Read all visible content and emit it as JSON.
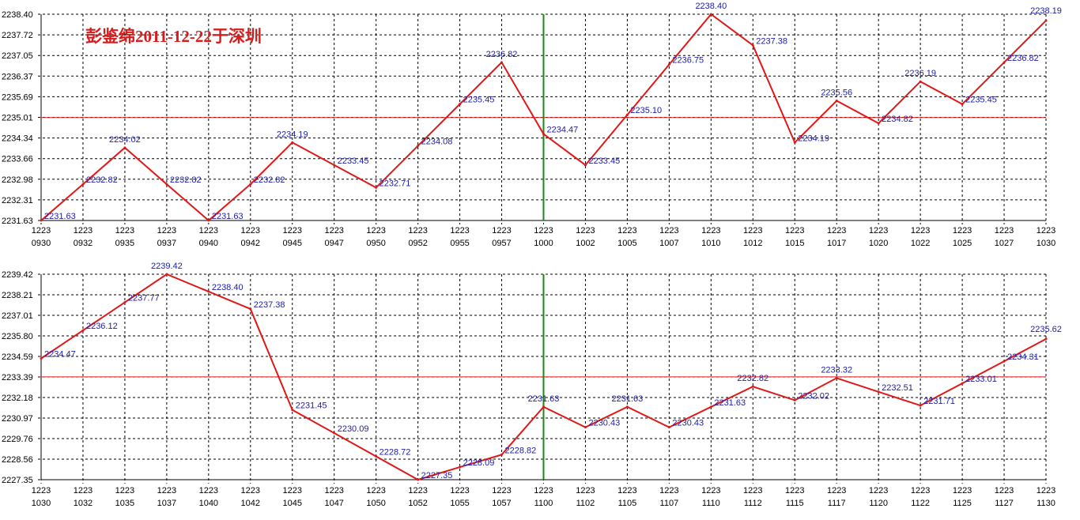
{
  "chart_data": [
    {
      "type": "line",
      "title": "彭鉴绵2011-12-22于深圳",
      "series_color": "#e01818",
      "label_color": "#1c1ca8",
      "reference_line_color": "#e01818",
      "vertical_marker_color": "#1a8a1a",
      "grid": true,
      "grid_style": "dashed",
      "ylim": [
        2231.63,
        2238.4
      ],
      "y_ticks": [
        "2238.40",
        "2237.72",
        "2237.05",
        "2236.37",
        "2235.69",
        "2235.01",
        "2234.34",
        "2233.66",
        "2232.98",
        "2232.31",
        "2231.63"
      ],
      "reference_line": 2235.01,
      "vertical_marker_at": "1223 1000",
      "x_ticks": [
        {
          "top": "1223",
          "bottom": "0930"
        },
        {
          "top": "1223",
          "bottom": "0932"
        },
        {
          "top": "1223",
          "bottom": "0935"
        },
        {
          "top": "1223",
          "bottom": "0937"
        },
        {
          "top": "1223",
          "bottom": "0940"
        },
        {
          "top": "1223",
          "bottom": "0942"
        },
        {
          "top": "1223",
          "bottom": "0945"
        },
        {
          "top": "1223",
          "bottom": "0947"
        },
        {
          "top": "1223",
          "bottom": "0950"
        },
        {
          "top": "1223",
          "bottom": "0952"
        },
        {
          "top": "1223",
          "bottom": "0955"
        },
        {
          "top": "1223",
          "bottom": "0957"
        },
        {
          "top": "1223",
          "bottom": "1000"
        },
        {
          "top": "1223",
          "bottom": "1002"
        },
        {
          "top": "1223",
          "bottom": "1005"
        },
        {
          "top": "1223",
          "bottom": "1007"
        },
        {
          "top": "1223",
          "bottom": "1010"
        },
        {
          "top": "1223",
          "bottom": "1012"
        },
        {
          "top": "1223",
          "bottom": "1015"
        },
        {
          "top": "1223",
          "bottom": "1017"
        },
        {
          "top": "1223",
          "bottom": "1020"
        },
        {
          "top": "1223",
          "bottom": "1022"
        },
        {
          "top": "1223",
          "bottom": "1025"
        },
        {
          "top": "1223",
          "bottom": "1027"
        },
        {
          "top": "1223",
          "bottom": "1030"
        }
      ],
      "values": [
        2231.63,
        2232.82,
        2234.02,
        2232.82,
        2231.63,
        2232.82,
        2234.19,
        2233.45,
        2232.71,
        2234.08,
        2235.45,
        2236.82,
        2234.47,
        2233.45,
        2235.1,
        2236.75,
        2238.4,
        2237.38,
        2234.19,
        2235.56,
        2234.82,
        2236.19,
        2235.45,
        2236.82,
        2238.19
      ],
      "labels": [
        "2231.63",
        "2232.82",
        "2234.02",
        "2232.82",
        "2231.63",
        "2232.82",
        "2234.19",
        "2233.45",
        "2232.71",
        "2234.08",
        "2235.45",
        "2236.82",
        "2234.47",
        "2233.45",
        "2235.10",
        "2236.75",
        "2238.40",
        "2237.38",
        "2234.19",
        "2235.56",
        "2234.82",
        "2236.19",
        "2235.45",
        "2236.82",
        "2238.19"
      ]
    },
    {
      "type": "line",
      "title": "",
      "series_color": "#e01818",
      "label_color": "#1c1ca8",
      "reference_line_color": "#e01818",
      "vertical_marker_color": "#1a8a1a",
      "grid": true,
      "grid_style": "dashed",
      "ylim": [
        2227.35,
        2239.42
      ],
      "y_ticks": [
        "2239.42",
        "2238.21",
        "2237.01",
        "2235.80",
        "2234.59",
        "2233.39",
        "2232.18",
        "2230.97",
        "2229.76",
        "2228.56",
        "2227.35"
      ],
      "reference_line": 2233.39,
      "vertical_marker_at": "1223 1100",
      "x_ticks": [
        {
          "top": "1223",
          "bottom": "1030"
        },
        {
          "top": "1223",
          "bottom": "1032"
        },
        {
          "top": "1223",
          "bottom": "1035"
        },
        {
          "top": "1223",
          "bottom": "1037"
        },
        {
          "top": "1223",
          "bottom": "1040"
        },
        {
          "top": "1223",
          "bottom": "1042"
        },
        {
          "top": "1223",
          "bottom": "1045"
        },
        {
          "top": "1223",
          "bottom": "1047"
        },
        {
          "top": "1223",
          "bottom": "1050"
        },
        {
          "top": "1223",
          "bottom": "1052"
        },
        {
          "top": "1223",
          "bottom": "1055"
        },
        {
          "top": "1223",
          "bottom": "1057"
        },
        {
          "top": "1223",
          "bottom": "1100"
        },
        {
          "top": "1223",
          "bottom": "1102"
        },
        {
          "top": "1223",
          "bottom": "1105"
        },
        {
          "top": "1223",
          "bottom": "1107"
        },
        {
          "top": "1223",
          "bottom": "1110"
        },
        {
          "top": "1223",
          "bottom": "1112"
        },
        {
          "top": "1223",
          "bottom": "1115"
        },
        {
          "top": "1223",
          "bottom": "1117"
        },
        {
          "top": "1223",
          "bottom": "1120"
        },
        {
          "top": "1223",
          "bottom": "1122"
        },
        {
          "top": "1223",
          "bottom": "1125"
        },
        {
          "top": "1223",
          "bottom": "1127"
        },
        {
          "top": "1223",
          "bottom": "1130"
        }
      ],
      "values": [
        2234.47,
        2236.12,
        2237.77,
        2239.42,
        2238.4,
        2237.38,
        2231.45,
        2230.09,
        2228.72,
        2227.35,
        2228.09,
        2228.82,
        2231.63,
        2230.43,
        2231.63,
        2230.43,
        2231.63,
        2232.82,
        2232.02,
        2233.32,
        2232.51,
        2231.71,
        2233.01,
        2234.31,
        2235.62
      ],
      "labels": [
        "2234.47",
        "2236.12",
        "2237.77",
        "2239.42",
        "2238.40",
        "2237.38",
        "2231.45",
        "2230.09",
        "2228.72",
        "2227.35",
        "2228.09",
        "2228.82",
        "2231.63",
        "2230.43",
        "2231.63",
        "2230.43",
        "2231.63",
        "2232.82",
        "2232.02",
        "2233.32",
        "2232.51",
        "2231.71",
        "2233.01",
        "2234.31",
        "2235.62"
      ]
    }
  ]
}
